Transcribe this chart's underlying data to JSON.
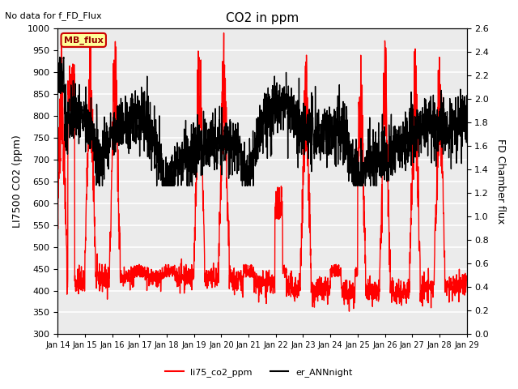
{
  "title": "CO2 in ppm",
  "top_left_text": "No data for f_FD_Flux",
  "ylabel_left": "LI7500 CO2 (ppm)",
  "ylabel_right": "FD Chamber flux",
  "ylim_left": [
    300,
    1000
  ],
  "ylim_right": [
    0.0,
    2.6
  ],
  "yticks_left": [
    300,
    350,
    400,
    450,
    500,
    550,
    600,
    650,
    700,
    750,
    800,
    850,
    900,
    950,
    1000
  ],
  "yticks_right": [
    0.0,
    0.2,
    0.4,
    0.6,
    0.8,
    1.0,
    1.2,
    1.4,
    1.6,
    1.8,
    2.0,
    2.2,
    2.4,
    2.6
  ],
  "xtick_labels": [
    "Jan 14",
    "Jan 15",
    "Jan 16",
    "Jan 17",
    "Jan 18",
    "Jan 19",
    "Jan 20",
    "Jan 21",
    "Jan 22",
    "Jan 23",
    "Jan 24",
    "Jan 25",
    "Jan 26",
    "Jan 27",
    "Jan 28",
    "Jan 29"
  ],
  "legend_entries": [
    {
      "label": "li75_co2_ppm",
      "color": "red",
      "lw": 1.0
    },
    {
      "label": "er_ANNnight",
      "color": "black",
      "lw": 1.0
    }
  ],
  "mb_flux_box": {
    "text": "MB_flux",
    "facecolor": "#FFFF99",
    "edgecolor": "#CC0000",
    "textcolor": "#990000"
  },
  "n_days": 15,
  "pts_per_day": 144,
  "background_color": "#ebebeb",
  "grid_color": "white",
  "seed": 42
}
